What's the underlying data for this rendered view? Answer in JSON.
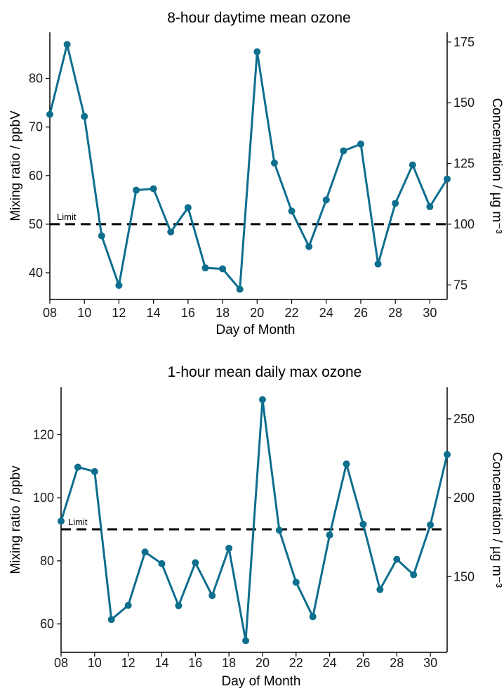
{
  "colors": {
    "series": "#0e6e8e",
    "limit": "#000000",
    "axis": "#000000"
  },
  "chart_data": [
    {
      "type": "line",
      "title": "8-hour daytime mean ozone",
      "xlabel": "Day of Month",
      "ylabel": "Mixing ratio / ppbV",
      "y2label": "Concentration / µg m⁻³",
      "xlim": [
        8,
        31
      ],
      "ylim": [
        34.5,
        89.5
      ],
      "x_tick_labels": [
        "08",
        "10",
        "12",
        "14",
        "16",
        "18",
        "20",
        "22",
        "24",
        "26",
        "28",
        "30"
      ],
      "x_ticks": [
        8,
        10,
        12,
        14,
        16,
        18,
        20,
        22,
        24,
        26,
        28,
        30
      ],
      "y_ticks": [
        40,
        50,
        60,
        70,
        80
      ],
      "y2_ticks": [
        75,
        100,
        125,
        150,
        175
      ],
      "y2_factor": 2.0,
      "grid": false,
      "limit": {
        "label": "Limit",
        "value": 50
      },
      "x": [
        8,
        9,
        10,
        11,
        12,
        13,
        14,
        15,
        16,
        17,
        18,
        19,
        20,
        21,
        22,
        23,
        24,
        25,
        26,
        27,
        28,
        29,
        30,
        31
      ],
      "values": [
        72.6,
        87.0,
        72.2,
        47.6,
        37.4,
        57.0,
        57.3,
        48.4,
        53.4,
        41.0,
        40.8,
        36.6,
        85.5,
        62.6,
        52.7,
        45.4,
        55.0,
        65.1,
        66.5,
        41.8,
        54.3,
        62.2,
        53.6,
        59.3
      ]
    },
    {
      "type": "line",
      "title": "1-hour mean daily max ozone",
      "xlabel": "Day of Month",
      "ylabel": "Mixing ratio / ppbv",
      "y2label": "Concentration / µg m⁻³",
      "xlim": [
        8,
        31
      ],
      "ylim": [
        51,
        135
      ],
      "x_tick_labels": [
        "08",
        "10",
        "12",
        "14",
        "16",
        "18",
        "20",
        "22",
        "24",
        "26",
        "28",
        "30"
      ],
      "x_ticks": [
        8,
        10,
        12,
        14,
        16,
        18,
        20,
        22,
        24,
        26,
        28,
        30
      ],
      "y_ticks": [
        60,
        80,
        100,
        120
      ],
      "y2_ticks": [
        150,
        200,
        250
      ],
      "y2_factor": 2.0,
      "grid": false,
      "limit": {
        "label": "Limit",
        "value": 90
      },
      "x": [
        8,
        9,
        10,
        11,
        12,
        13,
        14,
        15,
        16,
        17,
        18,
        19,
        20,
        21,
        22,
        23,
        24,
        25,
        26,
        27,
        28,
        29,
        30,
        31
      ],
      "values": [
        92.6,
        109.7,
        108.3,
        61.4,
        65.9,
        82.8,
        79.1,
        65.8,
        79.4,
        69.0,
        84.0,
        54.7,
        131.1,
        89.7,
        73.2,
        62.3,
        88.2,
        110.7,
        91.6,
        70.9,
        80.5,
        75.6,
        91.4,
        113.7
      ]
    }
  ]
}
